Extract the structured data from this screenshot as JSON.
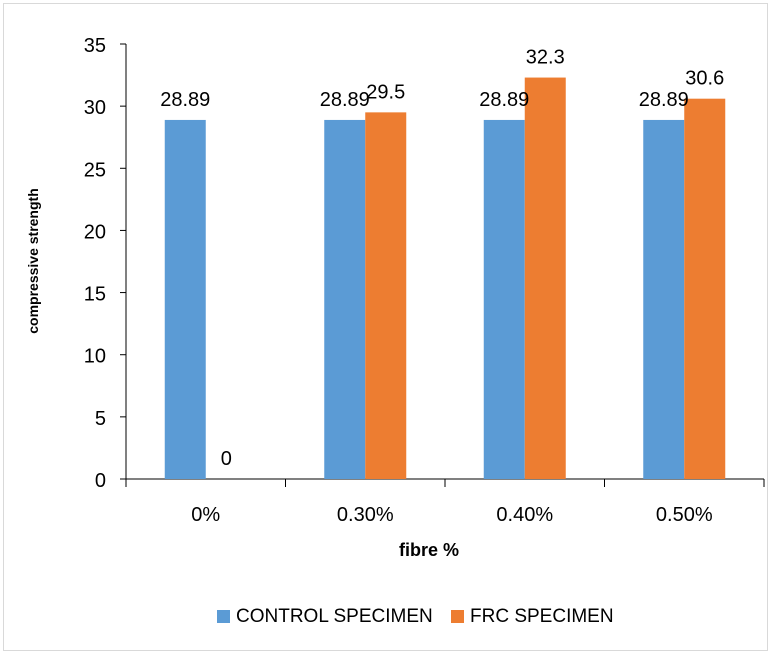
{
  "chart_data": {
    "type": "bar",
    "title": "",
    "xlabel": "fibre %",
    "ylabel": "compressive strength",
    "categories": [
      "0%",
      "0.30%",
      "0.40%",
      "0.50%"
    ],
    "series": [
      {
        "name": "CONTROL SPECIMEN",
        "color": "#5b9bd5",
        "values": [
          28.89,
          28.89,
          28.89,
          28.89
        ]
      },
      {
        "name": "FRC SPECIMEN",
        "color": "#ed7d31",
        "values": [
          0,
          29.5,
          32.3,
          30.6
        ]
      }
    ],
    "data_labels": [
      [
        "28.89",
        "28.89",
        "28.89",
        "28.89"
      ],
      [
        "0",
        "29.5",
        "32.3",
        "30.6"
      ]
    ],
    "ylim": [
      0,
      35
    ],
    "yticks": [
      0,
      5,
      10,
      15,
      20,
      25,
      30,
      35
    ],
    "grid": false,
    "legend": "bottom"
  }
}
